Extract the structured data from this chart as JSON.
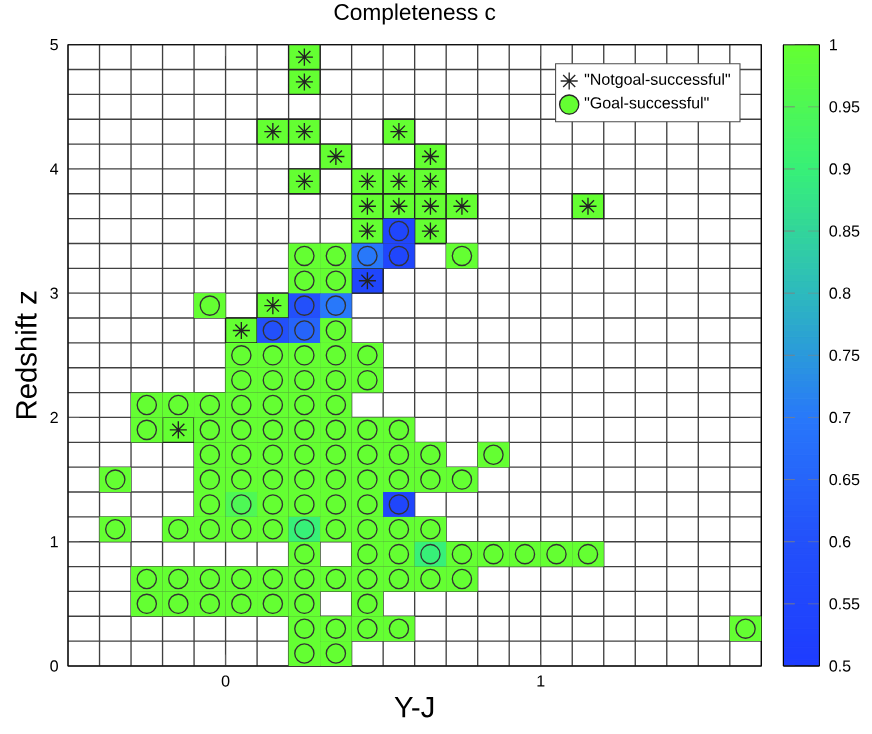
{
  "chart_data": {
    "type": "scatter",
    "title": "Completeness c",
    "xlabel": "Y-J",
    "ylabel": "Redshift z",
    "xlim": [
      -0.5,
      1.7
    ],
    "xticks": [
      0,
      1
    ],
    "ylim": [
      0,
      5
    ],
    "yticks": [
      0,
      1,
      2,
      3,
      4,
      5
    ],
    "clim": [
      0.5,
      1
    ],
    "cticks": [
      0.5,
      0.55,
      0.6,
      0.65,
      0.7,
      0.75,
      0.8,
      0.85,
      0.9,
      0.95,
      1
    ],
    "grid": true,
    "series": [
      {
        "name": "\"Notgoal-successful\"",
        "marker": "cross",
        "color": "#222222",
        "x": [
          -0.15,
          0.05,
          0.15,
          0.45,
          0.45,
          0.65,
          0.45,
          0.55,
          0.65,
          0.75,
          1.15,
          0.25,
          0.45,
          0.55,
          0.65,
          0.35,
          0.65,
          0.15,
          0.25,
          0.55,
          0.25,
          0.25
        ],
        "values": [
          1.9,
          2.7,
          2.9,
          3.1,
          3.5,
          3.5,
          3.7,
          3.7,
          3.7,
          3.7,
          3.7,
          3.9,
          3.9,
          3.9,
          3.9,
          4.1,
          4.1,
          4.3,
          4.3,
          4.3,
          4.7,
          4.9
        ],
        "cvalues": [
          1,
          1,
          1,
          0.55,
          1,
          1,
          1,
          1,
          1,
          1,
          1,
          1,
          1,
          1,
          1,
          1,
          1,
          1,
          1,
          1,
          1,
          1
        ]
      },
      {
        "name": "\"Goal-successful\"",
        "marker": "circle",
        "color": "#333333",
        "x": [
          0.25,
          0.35,
          0.25,
          0.35,
          0.45,
          0.55,
          1.65,
          -0.25,
          -0.15,
          -0.05,
          0.05,
          0.15,
          0.25,
          0.45,
          -0.25,
          -0.15,
          -0.05,
          0.05,
          0.15,
          0.25,
          0.35,
          0.45,
          0.55,
          0.65,
          0.75,
          0.25,
          0.45,
          0.55,
          0.65,
          0.75,
          0.85,
          0.95,
          1.05,
          1.15,
          -0.35,
          -0.15,
          -0.05,
          0.05,
          0.15,
          0.25,
          0.35,
          0.45,
          0.55,
          0.65,
          -0.05,
          0.05,
          0.15,
          0.25,
          0.35,
          0.45,
          0.55,
          -0.35,
          -0.05,
          0.05,
          0.15,
          0.25,
          0.35,
          0.45,
          0.55,
          0.65,
          0.75,
          -0.05,
          0.05,
          0.15,
          0.25,
          0.35,
          0.45,
          0.55,
          0.65,
          0.85,
          -0.25,
          -0.05,
          0.05,
          0.15,
          0.25,
          0.35,
          0.45,
          0.55,
          -0.25,
          -0.15,
          -0.05,
          0.05,
          0.15,
          0.25,
          0.35,
          0.05,
          0.15,
          0.25,
          0.35,
          0.45,
          0.05,
          0.15,
          0.25,
          0.35,
          0.45,
          0.15,
          0.25,
          0.35,
          -0.05,
          0.25,
          0.35,
          0.25,
          0.35,
          0.25,
          0.35,
          0.45,
          0.55,
          0.75,
          0.55
        ],
        "values": [
          0.1,
          0.1,
          0.3,
          0.3,
          0.3,
          0.3,
          0.3,
          0.5,
          0.5,
          0.5,
          0.5,
          0.5,
          0.5,
          0.5,
          0.7,
          0.7,
          0.7,
          0.7,
          0.7,
          0.7,
          0.7,
          0.7,
          0.7,
          0.7,
          0.7,
          0.9,
          0.9,
          0.9,
          0.9,
          0.9,
          0.9,
          0.9,
          0.9,
          0.9,
          1.1,
          1.1,
          1.1,
          1.1,
          1.1,
          1.1,
          1.1,
          1.1,
          1.1,
          1.1,
          1.3,
          1.3,
          1.3,
          1.3,
          1.3,
          1.3,
          1.3,
          1.5,
          1.5,
          1.5,
          1.5,
          1.5,
          1.5,
          1.5,
          1.5,
          1.5,
          1.5,
          1.7,
          1.7,
          1.7,
          1.7,
          1.7,
          1.7,
          1.7,
          1.7,
          1.7,
          1.9,
          1.9,
          1.9,
          1.9,
          1.9,
          1.9,
          1.9,
          1.9,
          2.1,
          2.1,
          2.1,
          2.1,
          2.1,
          2.1,
          2.1,
          2.3,
          2.3,
          2.3,
          2.3,
          2.3,
          2.5,
          2.5,
          2.5,
          2.5,
          2.5,
          2.7,
          2.7,
          2.7,
          2.9,
          2.9,
          2.9,
          3.1,
          3.1,
          3.3,
          3.3,
          3.3,
          3.3,
          3.3,
          3.5
        ],
        "cvalues": [
          1,
          1,
          1,
          1,
          1,
          1,
          1,
          1,
          1,
          1,
          1,
          1,
          1,
          1,
          1,
          1,
          1,
          1,
          1,
          1,
          1,
          1,
          1,
          1,
          1,
          1,
          1,
          1,
          0.9,
          1,
          1,
          1,
          1,
          1,
          1,
          1,
          1,
          1,
          1,
          0.9,
          1,
          1,
          1,
          1,
          1,
          0.95,
          1,
          1,
          1,
          1,
          0.55,
          1,
          1,
          1,
          1,
          1,
          1,
          1,
          1,
          1,
          1,
          1,
          1,
          1,
          1,
          1,
          1,
          1,
          1,
          1,
          1,
          1,
          1,
          1,
          1,
          1,
          1,
          1,
          1,
          1,
          1,
          1,
          1,
          1,
          1,
          1,
          1,
          1,
          1,
          1,
          1,
          1,
          1,
          1,
          1,
          0.6,
          0.65,
          1,
          1,
          0.6,
          0.7,
          1,
          1,
          1,
          1,
          0.7,
          0.55,
          1,
          0.55
        ]
      }
    ],
    "legend": "top right"
  }
}
